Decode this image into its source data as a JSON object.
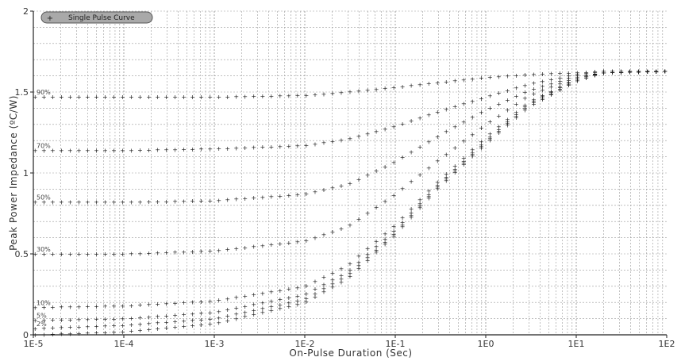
{
  "chart_data": {
    "type": "scatter",
    "xlabel": "On-Pulse Duration (Sec)",
    "ylabel": "Peak Power Impedance (ºC/W)",
    "x_scale": "log",
    "xlim": [
      1e-05,
      100
    ],
    "ylim": [
      0,
      2
    ],
    "x_ticks": [
      1e-05,
      0.0001,
      0.001,
      0.01,
      0.1,
      1,
      10,
      100
    ],
    "x_tick_labels": [
      "1E-5",
      "1E-4",
      "1E-3",
      "1E-2",
      "1E-1",
      "1E0",
      "1E1",
      "1E2"
    ],
    "y_ticks": [
      0,
      0.5,
      1,
      1.5,
      2
    ],
    "y_tick_labels": [
      "0",
      "0.5",
      "1",
      "1.5",
      "2"
    ],
    "grid": true,
    "legend": {
      "position": "top-left",
      "label": "Single Pulse Curve"
    },
    "series": [
      {
        "name": "90%",
        "x": [
          1e-05,
          0.0001,
          0.001,
          0.01,
          0.03,
          0.1,
          0.3,
          1,
          3,
          10,
          20,
          100
        ],
        "y": [
          1.47,
          1.47,
          1.47,
          1.48,
          1.5,
          1.53,
          1.56,
          1.59,
          1.61,
          1.62,
          1.63,
          1.63
        ]
      },
      {
        "name": "70%",
        "x": [
          1e-05,
          0.0001,
          0.001,
          0.01,
          0.03,
          0.1,
          0.3,
          1,
          3,
          10,
          20,
          100
        ],
        "y": [
          1.14,
          1.14,
          1.15,
          1.17,
          1.21,
          1.29,
          1.38,
          1.47,
          1.55,
          1.61,
          1.63,
          1.63
        ]
      },
      {
        "name": "50%",
        "x": [
          1e-05,
          0.0001,
          0.001,
          0.01,
          0.03,
          0.1,
          0.3,
          1,
          3,
          10,
          20,
          100
        ],
        "y": [
          0.82,
          0.82,
          0.83,
          0.87,
          0.93,
          1.07,
          1.23,
          1.39,
          1.51,
          1.6,
          1.62,
          1.63
        ]
      },
      {
        "name": "30%",
        "x": [
          1e-05,
          0.0001,
          0.001,
          0.01,
          0.03,
          0.1,
          0.3,
          1,
          3,
          10,
          20,
          100
        ],
        "y": [
          0.5,
          0.5,
          0.52,
          0.58,
          0.67,
          0.87,
          1.08,
          1.3,
          1.48,
          1.59,
          1.62,
          1.63
        ]
      },
      {
        "name": "10%",
        "x": [
          1e-05,
          0.0001,
          0.001,
          0.01,
          0.03,
          0.1,
          0.3,
          1,
          3,
          10,
          20,
          100
        ],
        "y": [
          0.17,
          0.18,
          0.21,
          0.3,
          0.43,
          0.68,
          0.95,
          1.22,
          1.44,
          1.58,
          1.62,
          1.63
        ]
      },
      {
        "name": "5%",
        "x": [
          1e-05,
          0.0001,
          0.001,
          0.01,
          0.03,
          0.1,
          0.3,
          1,
          3,
          10,
          20,
          100
        ],
        "y": [
          0.09,
          0.1,
          0.14,
          0.25,
          0.39,
          0.65,
          0.93,
          1.2,
          1.43,
          1.58,
          1.62,
          1.63
        ]
      },
      {
        "name": "2%",
        "x": [
          1e-05,
          0.0001,
          0.001,
          0.01,
          0.03,
          0.1,
          0.3,
          1,
          3,
          10,
          20,
          100
        ],
        "y": [
          0.04,
          0.06,
          0.1,
          0.22,
          0.37,
          0.63,
          0.92,
          1.19,
          1.42,
          1.57,
          1.62,
          1.63
        ]
      },
      {
        "name": "",
        "x": [
          1e-05,
          0.0001,
          0.001,
          0.01,
          0.03,
          0.1,
          0.3,
          1,
          3,
          10,
          20,
          100
        ],
        "y": [
          0.0,
          0.02,
          0.07,
          0.2,
          0.35,
          0.62,
          0.91,
          1.18,
          1.41,
          1.57,
          1.62,
          1.63
        ]
      }
    ],
    "duty_labels": [
      "90%",
      "70%",
      "50%",
      "30%",
      "10%",
      "5%",
      "2%"
    ],
    "marker_color": "#1a1a1a",
    "grid_color": "#9a9a9a"
  }
}
